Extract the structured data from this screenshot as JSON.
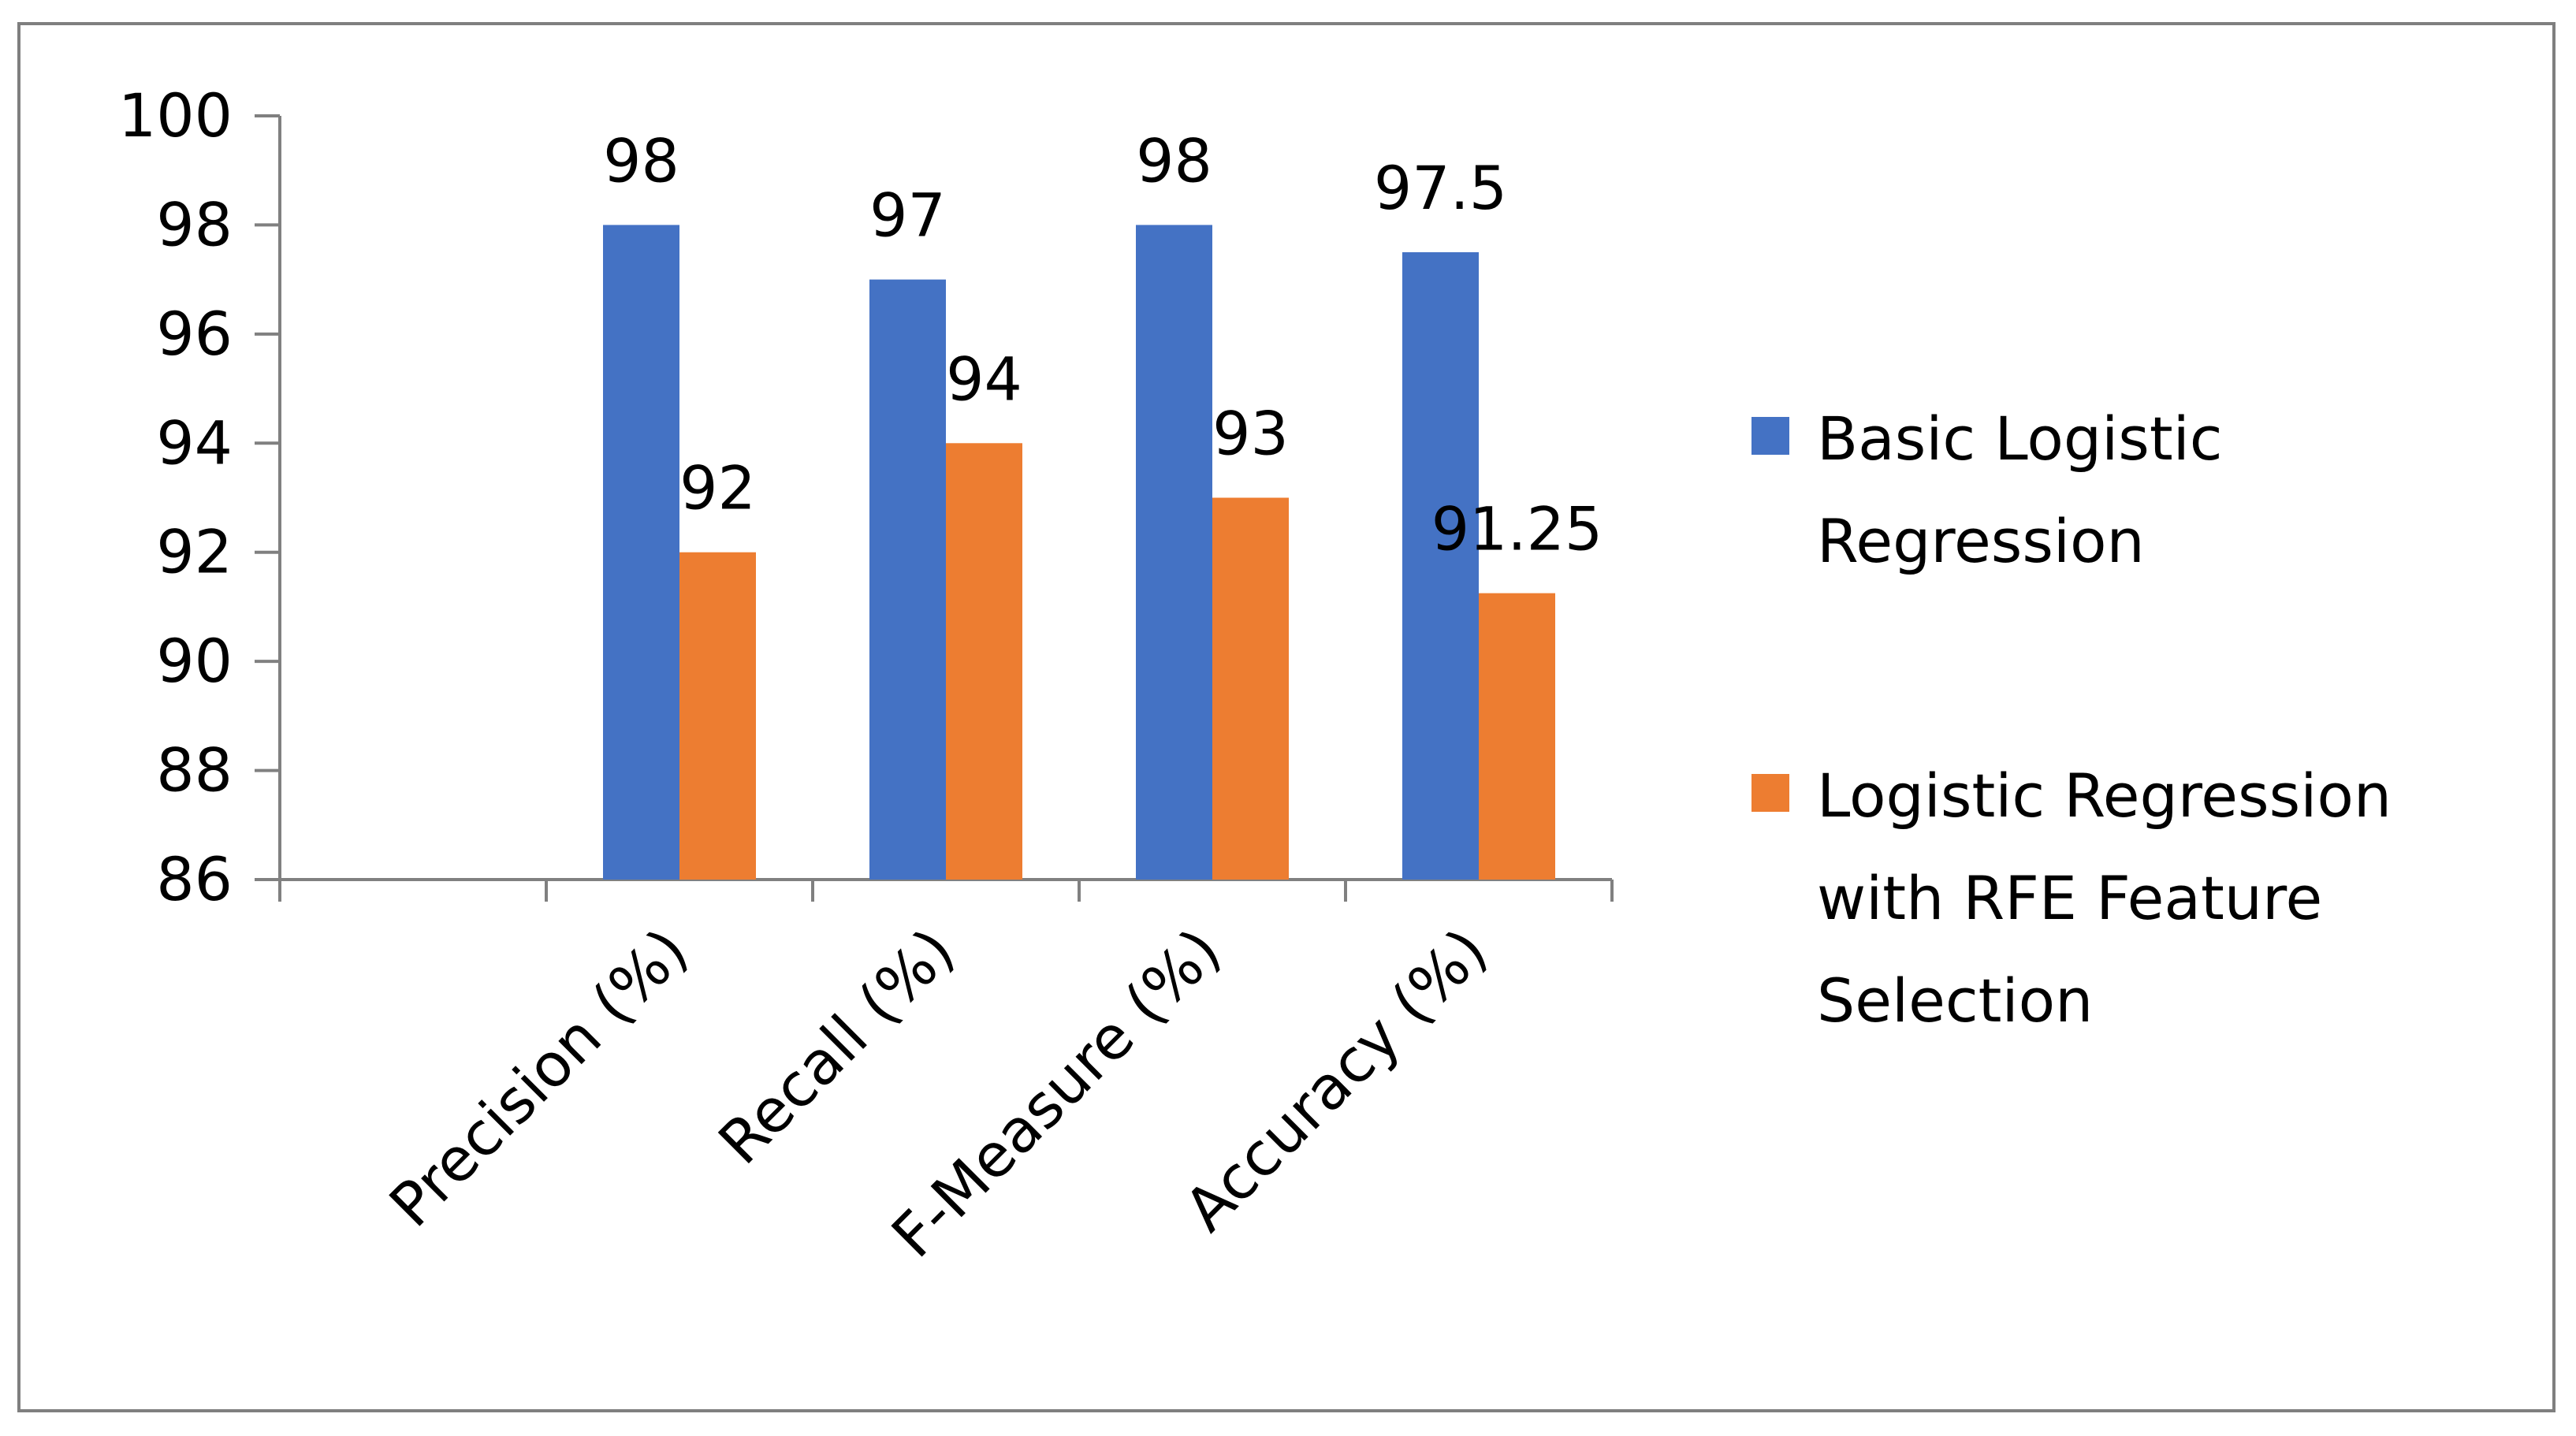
{
  "chart_data": {
    "type": "bar",
    "title": "",
    "xlabel": "",
    "ylabel": "",
    "categories": [
      "",
      "Precision (%)",
      "Recall (%)",
      "F-Measure (%)",
      "Accuracy (%)"
    ],
    "series": [
      {
        "name": "Basic Logistic Regression",
        "legend_lines": [
          "Basic Logistic",
          "Regression"
        ],
        "color": "#4472C4",
        "values": [
          null,
          98,
          97,
          98,
          97.5
        ],
        "labels": [
          "",
          "98",
          "97",
          "98",
          "97.5"
        ]
      },
      {
        "name": "Logistic Regression with RFE Feature Selection",
        "legend_lines": [
          "Logistic Regression",
          "with RFE Feature",
          "Selection"
        ],
        "color": "#ED7D31",
        "values": [
          null,
          92,
          94,
          93,
          91.25
        ],
        "labels": [
          "",
          "92",
          "94",
          "93",
          "91.25"
        ]
      }
    ],
    "ylim": [
      86,
      100
    ],
    "yticks": [
      86,
      88,
      90,
      92,
      94,
      96,
      98,
      100
    ],
    "grid": false,
    "legend_position": "right"
  }
}
